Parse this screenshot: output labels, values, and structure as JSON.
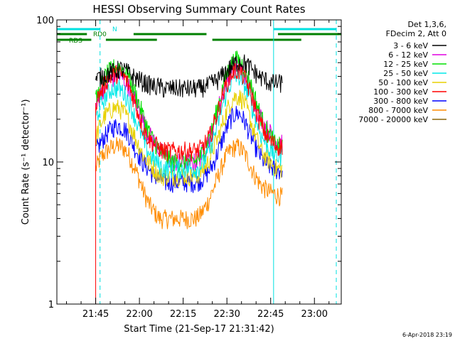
{
  "chart_data": {
    "type": "line",
    "title": "HESSI Observing Summary Count Rates",
    "xlabel": "Start Time (21-Sep-17 21:31:42)",
    "ylabel": "Count Rate (s⁻¹ detector⁻¹)",
    "yscale": "log",
    "ylim": [
      1,
      100
    ],
    "xlim_minutes_after_2130": [
      1.7,
      99.2
    ],
    "x_ticks": [
      {
        "label": "21:45",
        "minute": 15
      },
      {
        "label": "22:00",
        "minute": 30
      },
      {
        "label": "22:15",
        "minute": 45
      },
      {
        "label": "22:30",
        "minute": 60
      },
      {
        "label": "22:45",
        "minute": 75
      },
      {
        "label": "23:00",
        "minute": 90
      }
    ],
    "y_ticks": [
      {
        "label": "1",
        "value": 1
      },
      {
        "label": "10",
        "value": 10
      },
      {
        "label": "100",
        "value": 100
      }
    ],
    "legend": {
      "placement": "right",
      "header": [
        "Det 1,3,6,",
        "FDecim 2, Att 0"
      ],
      "entries": [
        {
          "name": "3 - 6 keV",
          "color": "#000000"
        },
        {
          "name": "6 - 12 keV",
          "color": "#e000e0"
        },
        {
          "name": "12 - 25 keV",
          "color": "#00e000"
        },
        {
          "name": "25 - 50 keV",
          "color": "#00e8e8"
        },
        {
          "name": "50 - 100 keV",
          "color": "#e8d000"
        },
        {
          "name": "100 - 300 keV",
          "color": "#ff0000"
        },
        {
          "name": "300 - 800 keV",
          "color": "#0000ff"
        },
        {
          "name": "800 - 7000 keV",
          "color": "#ff8c00"
        },
        {
          "name": "7000 - 20000 keV",
          "color": "#8b6508"
        }
      ]
    },
    "time_x": [
      15,
      16,
      17,
      18,
      19,
      20,
      21,
      22,
      23,
      24,
      25,
      26,
      27,
      28,
      29,
      30,
      31,
      32,
      33,
      34,
      35,
      36,
      37,
      38,
      39,
      40,
      41,
      42,
      43,
      44,
      45,
      46,
      47,
      48,
      49,
      50,
      51,
      52,
      53,
      54,
      55,
      56,
      57,
      58,
      59,
      60,
      61,
      62,
      63,
      64,
      65,
      66,
      67,
      68,
      69,
      70,
      71,
      72,
      73,
      74,
      75,
      76,
      77,
      78,
      79
    ],
    "series": [
      {
        "name": "3 - 6 keV",
        "color": "#000000",
        "values": [
          38,
          39,
          40,
          41,
          42,
          43,
          43,
          44,
          45,
          45,
          44,
          43,
          41,
          40,
          39,
          38,
          37,
          36,
          35,
          35,
          34,
          34,
          34,
          33,
          33,
          33,
          33,
          33,
          33,
          33,
          33,
          33,
          33,
          33,
          33,
          33,
          33,
          34,
          34,
          35,
          36,
          37,
          38,
          40,
          42,
          44,
          46,
          48,
          50,
          51,
          51,
          50,
          48,
          46,
          44,
          42,
          40,
          39,
          38,
          37,
          36,
          36,
          36,
          36,
          36
        ]
      },
      {
        "name": "6 - 12 keV",
        "color": "#e000e0",
        "values": [
          24,
          28,
          31,
          34,
          36,
          38,
          39,
          40,
          40,
          39,
          37,
          35,
          32,
          29,
          26,
          23,
          20,
          18,
          16,
          15,
          14,
          13,
          12,
          11.5,
          11,
          10.5,
          10,
          10,
          10,
          10,
          10,
          10,
          10,
          10,
          10,
          10.5,
          11,
          12,
          13,
          15,
          17,
          20,
          24,
          28,
          33,
          38,
          42,
          45,
          47,
          47,
          45,
          42,
          38,
          33,
          29,
          25,
          22,
          20,
          18,
          17,
          16,
          15,
          14,
          14,
          14
        ]
      },
      {
        "name": "12 - 25 keV",
        "color": "#00e000",
        "values": [
          27,
          31,
          35,
          39,
          42,
          44,
          46,
          47,
          47,
          46,
          44,
          41,
          37,
          33,
          29,
          25,
          22,
          19,
          17,
          15,
          14,
          13,
          12,
          11.5,
          11,
          10.5,
          10,
          10,
          10,
          10,
          10,
          10,
          10,
          10,
          10,
          10.5,
          11,
          12,
          13,
          15,
          17,
          21,
          25,
          30,
          36,
          42,
          47,
          51,
          53,
          52,
          50,
          46,
          41,
          36,
          31,
          27,
          23,
          20,
          18,
          16,
          15,
          14,
          13,
          13,
          13
        ]
      },
      {
        "name": "25 - 50 keV",
        "color": "#00e8e8",
        "values": [
          20,
          23,
          26,
          28,
          30,
          32,
          33,
          33,
          33,
          32,
          30,
          28,
          25,
          22,
          19,
          17,
          15,
          13,
          12,
          11,
          10.5,
          10,
          9.5,
          9,
          9,
          9,
          9,
          9,
          9,
          9,
          9,
          9,
          9,
          9,
          9,
          9,
          9.5,
          10,
          11,
          12,
          14,
          16,
          19,
          23,
          27,
          31,
          35,
          38,
          40,
          40,
          38,
          35,
          31,
          27,
          23,
          20,
          17,
          15,
          14,
          13,
          12,
          11.5,
          11,
          11,
          11
        ]
      },
      {
        "name": "50 - 100 keV",
        "color": "#e8d000",
        "values": [
          15,
          17,
          19,
          21,
          22,
          23,
          24,
          24,
          24,
          23,
          22,
          20,
          18,
          16,
          14,
          13,
          11.5,
          10.5,
          10,
          9.5,
          9,
          8.5,
          8,
          8,
          8,
          8,
          8,
          8,
          8,
          8,
          8,
          8,
          8,
          8,
          8,
          8,
          8.5,
          9,
          9.5,
          10.5,
          12,
          13.5,
          15,
          17,
          20,
          23,
          26,
          28,
          29,
          29,
          28,
          26,
          23,
          20,
          17,
          15,
          13,
          12,
          11,
          10.5,
          10,
          9.5,
          9,
          9,
          9
        ]
      },
      {
        "name": "100 - 300 keV",
        "color": "#ff0000",
        "values": [
          26,
          29,
          32,
          35,
          38,
          40,
          41,
          42,
          42,
          41,
          39,
          36,
          32,
          28,
          24,
          21,
          18,
          16,
          15,
          14,
          13.5,
          13,
          12.5,
          12,
          12,
          12,
          12,
          12,
          12,
          12,
          12,
          12,
          12,
          12,
          12,
          12,
          12.5,
          13,
          14,
          15,
          17,
          20,
          23,
          27,
          32,
          36,
          40,
          43,
          44,
          44,
          42,
          39,
          35,
          31,
          27,
          23,
          20,
          18,
          16,
          15,
          14,
          13.5,
          13,
          13,
          13
        ]
      },
      {
        "name": "300 - 800 keV",
        "color": "#0000ff",
        "values": [
          12,
          13,
          14,
          15,
          16,
          17,
          17.5,
          18,
          18,
          17.5,
          17,
          16,
          14.5,
          13,
          12,
          11,
          10,
          9.5,
          9,
          8.5,
          8,
          7.8,
          7.6,
          7.4,
          7.2,
          7.2,
          7.2,
          7.2,
          7.2,
          7.2,
          7.2,
          7.2,
          7.2,
          7.2,
          7.2,
          7.3,
          7.5,
          7.8,
          8.2,
          8.8,
          9.5,
          10.5,
          12,
          13.5,
          15.5,
          17.5,
          19.5,
          21,
          22,
          22,
          21,
          19.5,
          17.5,
          15.5,
          14,
          12.5,
          11.5,
          10.5,
          10,
          9.5,
          9.2,
          9,
          8.8,
          8.7,
          8.6
        ]
      },
      {
        "name": "800 - 7000 keV",
        "color": "#ff8c00",
        "values": [
          9,
          10,
          11,
          11.5,
          12,
          12.5,
          12.8,
          13,
          13,
          12.8,
          12.3,
          11.5,
          10.5,
          9.5,
          8.5,
          7.5,
          6.5,
          5.8,
          5.2,
          4.8,
          4.5,
          4.2,
          4,
          4,
          4,
          4,
          4,
          4,
          4,
          4,
          4,
          4,
          4,
          4,
          4,
          4.1,
          4.3,
          4.6,
          5,
          5.5,
          6.2,
          7,
          8,
          9,
          10.2,
          11.2,
          12,
          12.5,
          12.8,
          12.8,
          12.3,
          11.5,
          10.5,
          9.5,
          8.5,
          7.8,
          7.2,
          6.8,
          6.5,
          6.3,
          6.1,
          6,
          5.9,
          5.8,
          5.7
        ]
      },
      {
        "name": "7000 - 20000 keV",
        "color": "#8b6508",
        "values": []
      }
    ],
    "coverage_bars": [
      {
        "label": "N",
        "color": "#00e0e0",
        "intervals": [
          [
            1.7,
            16.5
          ],
          [
            76,
            97.5
          ]
        ]
      },
      {
        "label": "RD0",
        "color": "#008000",
        "intervals": [
          [
            1.7,
            12
          ],
          [
            28,
            53
          ],
          [
            77.5,
            99.2
          ]
        ]
      },
      {
        "label": "RDS",
        "color": "#008000",
        "intervals": [
          [
            1.7,
            13.5
          ],
          [
            18.5,
            36
          ],
          [
            55,
            85.5
          ]
        ]
      }
    ],
    "vertical_markers": [
      {
        "minute": 1.7,
        "style": "solid",
        "color": "#00e0e0"
      },
      {
        "minute": 16.5,
        "style": "dashed",
        "color": "#00e0e0"
      },
      {
        "minute": 76,
        "style": "solid",
        "color": "#00e0e0"
      },
      {
        "minute": 97.5,
        "style": "dashed",
        "color": "#00e0e0"
      }
    ],
    "timestamp": "6-Apr-2018 23:19"
  }
}
